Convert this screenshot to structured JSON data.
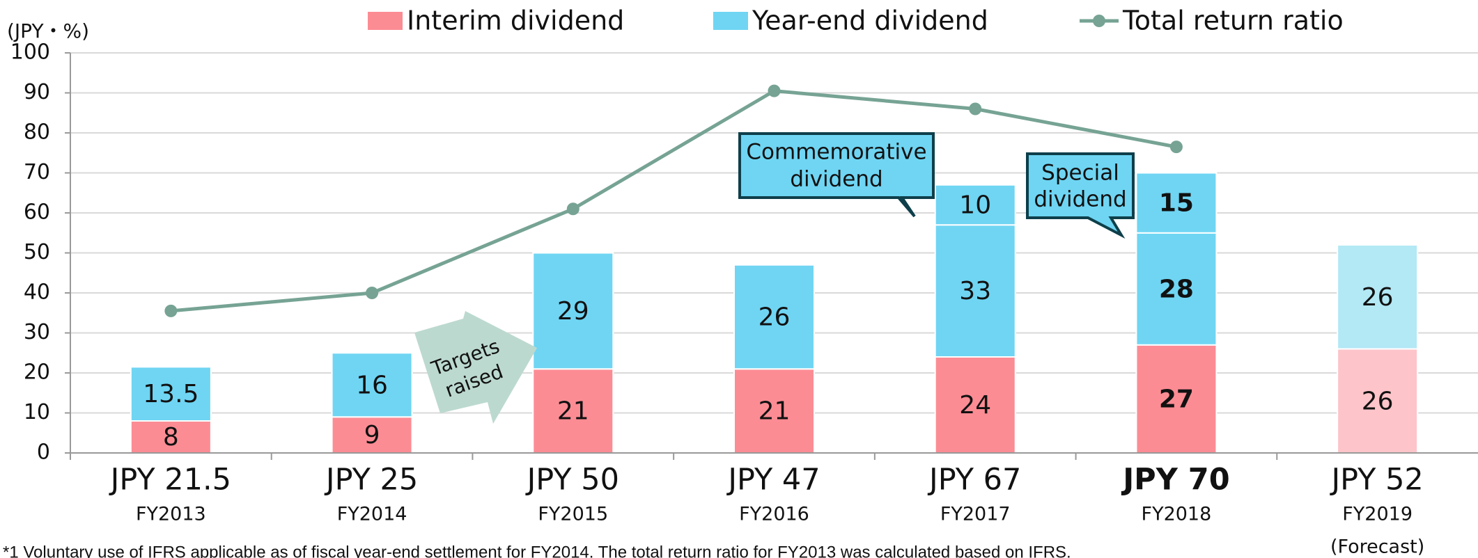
{
  "chart_data": {
    "type": "bar",
    "stacked": true,
    "y_unit_label": "(JPY・%)",
    "categories": [
      "FY2013",
      "FY2014",
      "FY2015",
      "FY2016",
      "FY2017",
      "FY2018",
      "FY2019"
    ],
    "category_notes": [
      null,
      null,
      null,
      null,
      null,
      null,
      "(Forecast)"
    ],
    "total_labels": [
      "JPY 21.5",
      "JPY 25",
      "JPY 50",
      "JPY 47",
      "JPY 67",
      "JPY 70",
      "JPY 52"
    ],
    "bold": [
      false,
      false,
      false,
      false,
      false,
      true,
      false
    ],
    "forecast": [
      false,
      false,
      false,
      false,
      false,
      false,
      true
    ],
    "series": [
      {
        "name": "Interim dividend",
        "type": "bar",
        "color": "#fc8c94",
        "forecast_color": "#fdc4c9",
        "values": [
          8,
          9,
          21,
          21,
          24,
          27,
          26
        ]
      },
      {
        "name": "Year-end dividend",
        "type": "bar",
        "color": "#6fd5f3",
        "forecast_color": "#b3e8f5",
        "values": [
          13.5,
          16,
          29,
          26,
          33,
          28,
          26
        ]
      },
      {
        "type": "bar",
        "color": "#6fd5f3",
        "forecast_color": "#b3e8f5",
        "values": [
          null,
          null,
          null,
          null,
          10,
          15,
          null
        ]
      },
      {
        "name": "Total return ratio",
        "type": "line",
        "color": "#76a394",
        "values": [
          35.5,
          40,
          61,
          90.5,
          86,
          76.5,
          null
        ]
      }
    ],
    "ylim": [
      0,
      100
    ],
    "yticks": [
      0,
      10,
      20,
      30,
      40,
      50,
      60,
      70,
      80,
      90,
      100
    ],
    "grid": true,
    "annotations": {
      "commemorative": [
        "Commemorative",
        "dividend"
      ],
      "special": [
        "Special",
        "dividend"
      ],
      "targets": [
        "Targets",
        "raised"
      ]
    },
    "footnote": "*1 Voluntary use of IFRS applicable as of fiscal year-end settlement for FY2014. The total return ratio for FY2013 was calculated based on IFRS."
  }
}
